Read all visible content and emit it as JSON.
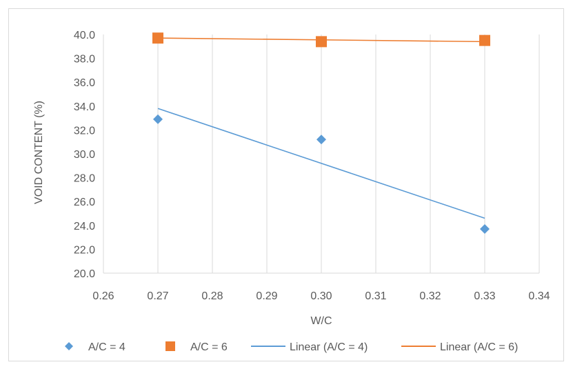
{
  "chart_data": {
    "type": "scatter",
    "title": "",
    "xlabel": "W/C",
    "ylabel": "VOID CONTENT (%)",
    "xlim": [
      0.26,
      0.34
    ],
    "ylim": [
      20.0,
      40.0
    ],
    "x_ticks": [
      "0.26",
      "0.27",
      "0.28",
      "0.29",
      "0.30",
      "0.31",
      "0.32",
      "0.33",
      "0.34"
    ],
    "y_ticks": [
      "20.0",
      "22.0",
      "24.0",
      "26.0",
      "28.0",
      "30.0",
      "32.0",
      "34.0",
      "36.0",
      "38.0",
      "40.0"
    ],
    "grid": "vertical",
    "legend_position": "bottom",
    "series": [
      {
        "name": "A/C = 4",
        "marker": "diamond",
        "color": "#5b9bd5",
        "x": [
          0.27,
          0.3,
          0.33
        ],
        "y": [
          32.9,
          31.2,
          23.7
        ]
      },
      {
        "name": "A/C = 6",
        "marker": "square",
        "color": "#ed7d31",
        "x": [
          0.27,
          0.3,
          0.33
        ],
        "y": [
          39.7,
          39.4,
          39.5
        ]
      }
    ],
    "trendlines": [
      {
        "name": "Linear (A/C = 4)",
        "color": "#5b9bd5",
        "x": [
          0.27,
          0.33
        ],
        "y": [
          33.8,
          24.6
        ]
      },
      {
        "name": "Linear (A/C = 6)",
        "color": "#ed7d31",
        "x": [
          0.27,
          0.33
        ],
        "y": [
          39.7,
          39.4
        ]
      }
    ]
  }
}
